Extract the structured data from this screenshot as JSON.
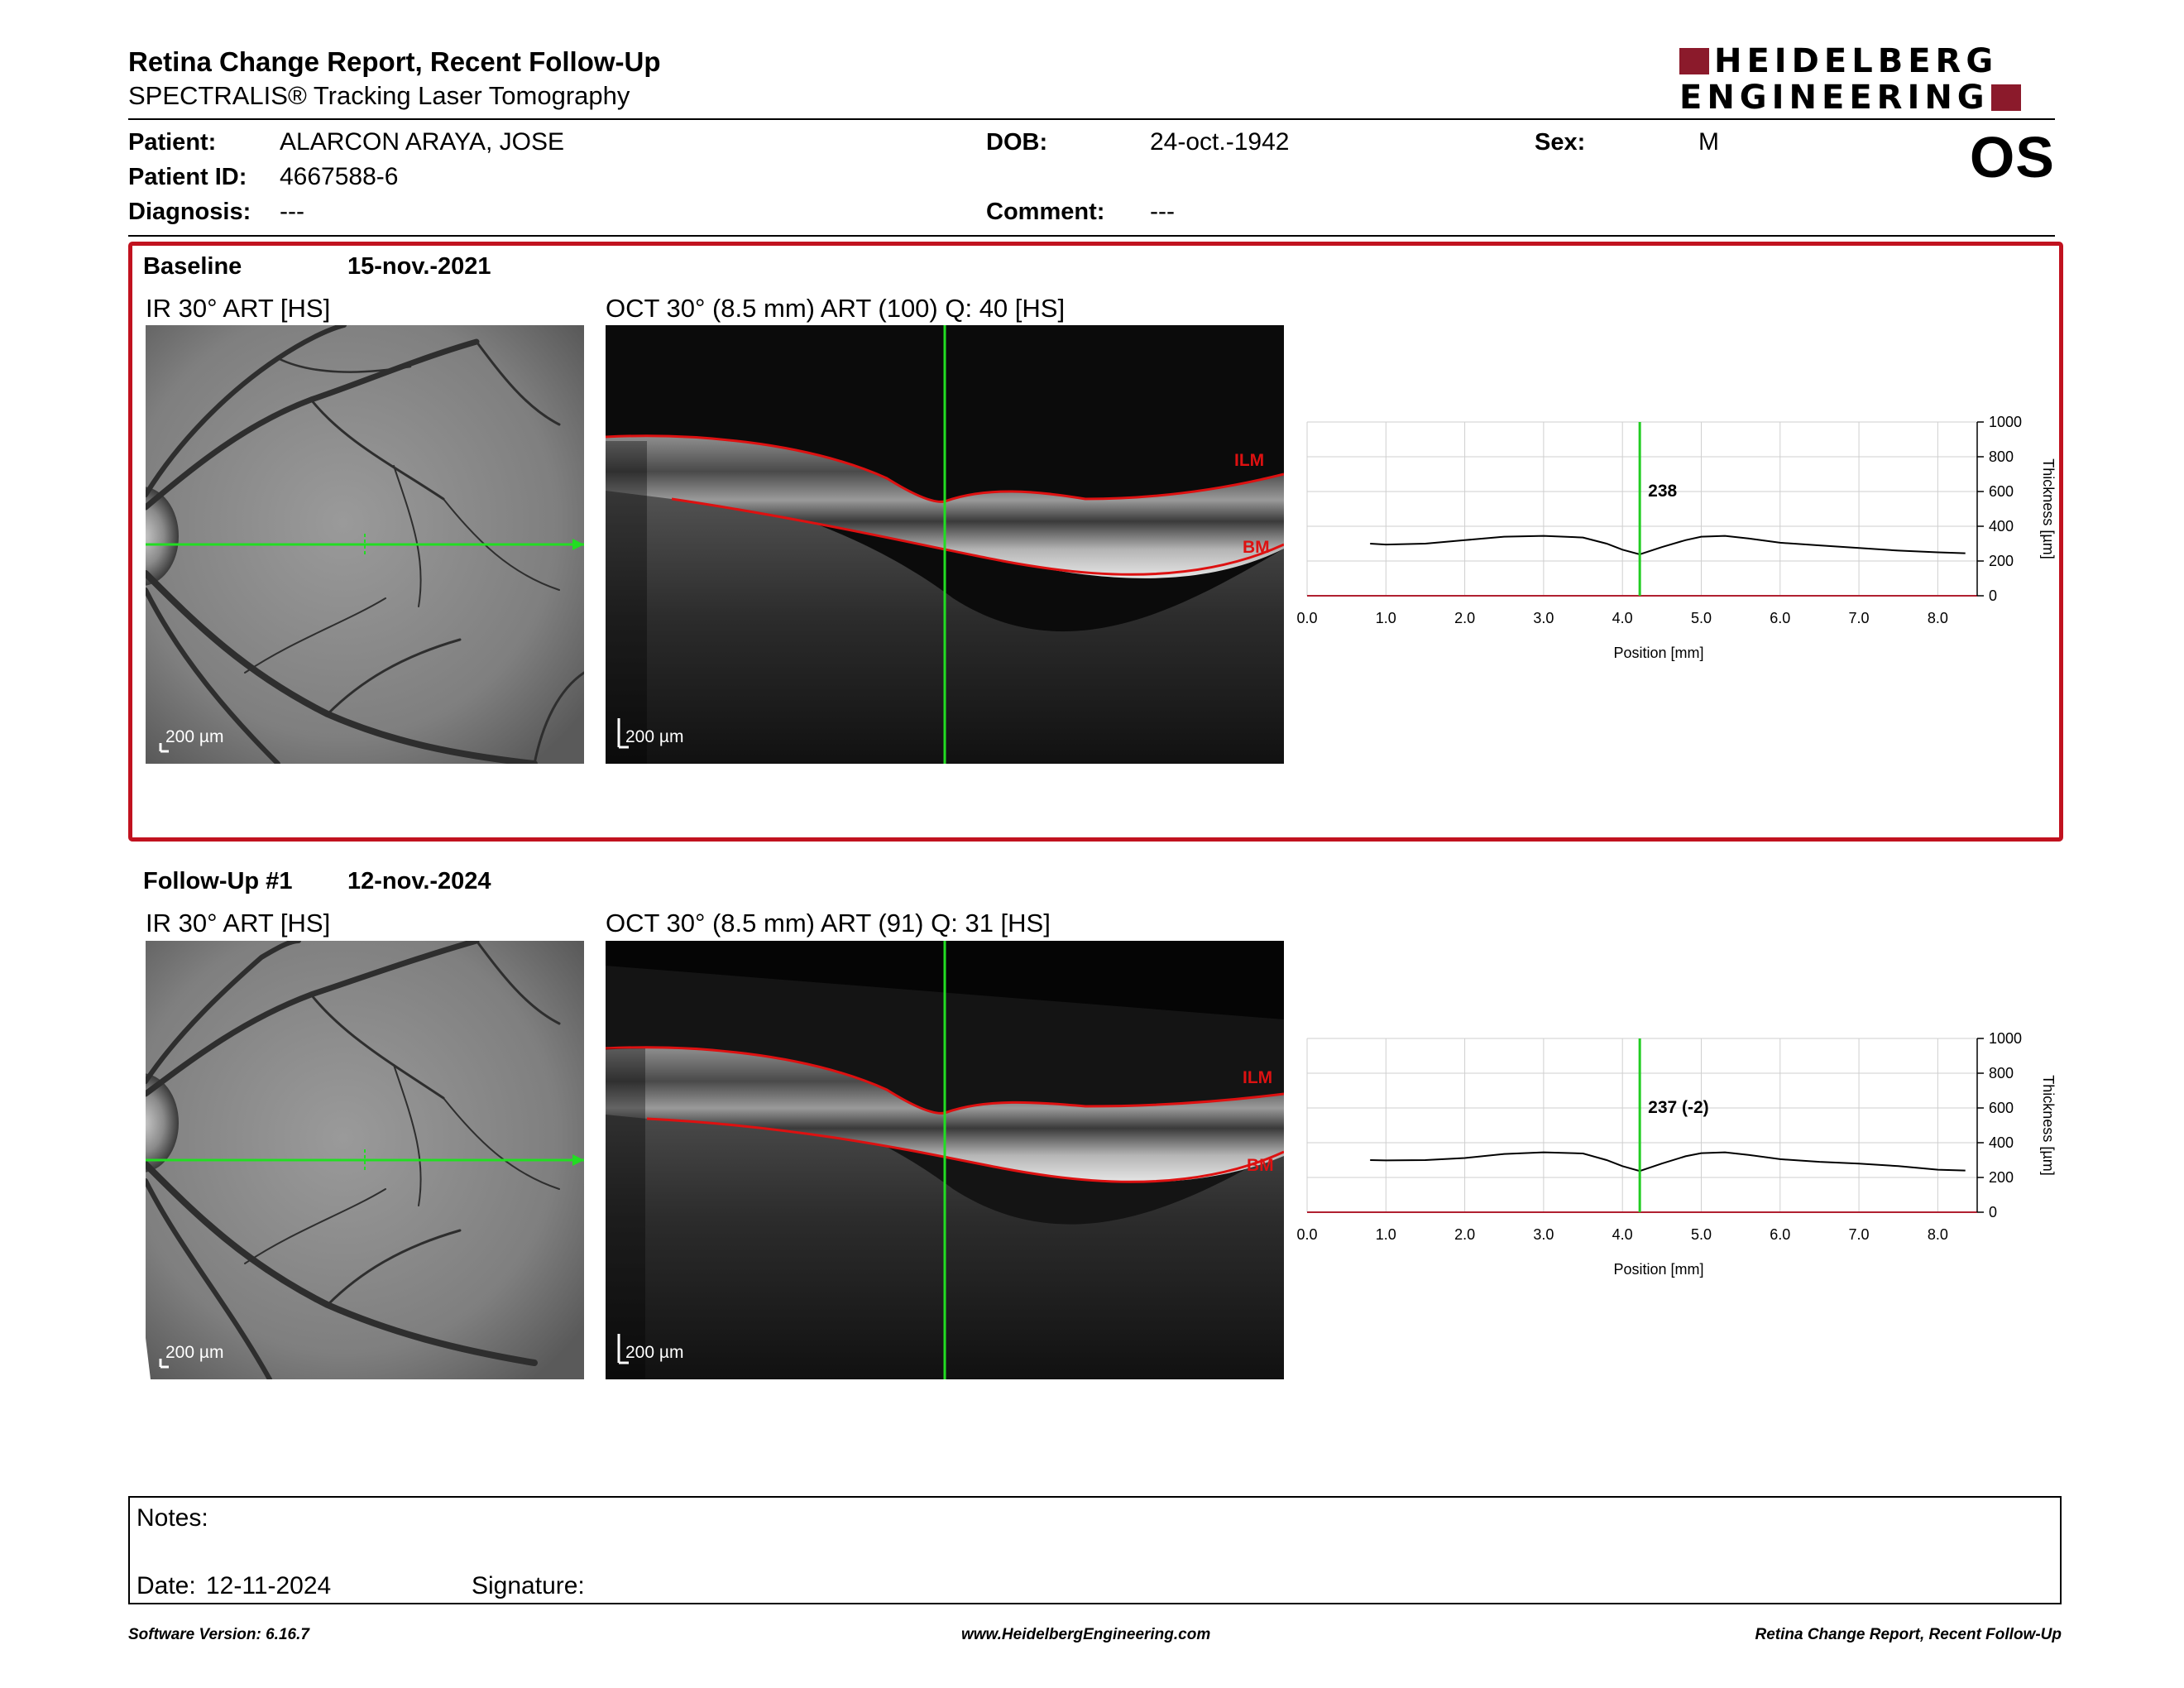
{
  "header": {
    "title": "Retina Change Report, Recent Follow-Up",
    "subtitle": "SPECTRALIS® Tracking Laser Tomography",
    "logo_line1": "HEIDELBERG",
    "logo_line2": "ENGINEERING",
    "logo_color": "#8b1a2b",
    "eye": "OS"
  },
  "patient": {
    "name_label": "Patient:",
    "name": "ALARCON ARAYA, JOSE",
    "dob_label": "DOB:",
    "dob": "24-oct.-1942",
    "sex_label": "Sex:",
    "sex": "M",
    "id_label": "Patient ID:",
    "id": "4667588-6",
    "diagnosis_label": "Diagnosis:",
    "diagnosis": "---",
    "comment_label": "Comment:",
    "comment": "---"
  },
  "baseline": {
    "label": "Baseline",
    "date": "15-nov.-2021",
    "ir_caption": "IR 30° ART [HS]",
    "oct_caption": "OCT 30° (8.5 mm) ART (100) Q: 40 [HS]",
    "scale": "200 µm",
    "ilm": "ILM",
    "bm": "BM",
    "box_color": "#c1121f"
  },
  "followup": {
    "label": "Follow-Up #1",
    "date": "12-nov.-2024",
    "ir_caption": "IR 30° ART [HS]",
    "oct_caption": "OCT 30° (8.5 mm) ART (91) Q: 31 [HS]",
    "scale": "200 µm",
    "ilm": "ILM",
    "bm": "BM"
  },
  "chart_data": [
    {
      "type": "line",
      "xlabel": "Position [mm]",
      "ylabel": "Thickness [µm]",
      "xlim": [
        0,
        8.5
      ],
      "ylim": [
        0,
        1000
      ],
      "xticks": [
        "0.0",
        "1.0",
        "2.0",
        "3.0",
        "4.0",
        "5.0",
        "6.0",
        "7.0",
        "8.0"
      ],
      "yticks": [
        "0",
        "200",
        "400",
        "600",
        "800",
        "1000"
      ],
      "cursor_x": 4.22,
      "cursor_label": "238",
      "cursor_color": "#22cc22",
      "grid": true,
      "x": [
        0.8,
        1.0,
        1.5,
        2.0,
        2.5,
        3.0,
        3.5,
        3.8,
        4.0,
        4.22,
        4.5,
        4.8,
        5.0,
        5.3,
        5.6,
        6.0,
        6.5,
        7.0,
        7.5,
        8.0,
        8.35
      ],
      "y": [
        300,
        295,
        300,
        320,
        340,
        345,
        335,
        300,
        265,
        238,
        280,
        320,
        340,
        345,
        330,
        305,
        290,
        275,
        260,
        250,
        245
      ]
    },
    {
      "type": "line",
      "xlabel": "Position [mm]",
      "ylabel": "Thickness [µm]",
      "xlim": [
        0,
        8.5
      ],
      "ylim": [
        0,
        1000
      ],
      "xticks": [
        "0.0",
        "1.0",
        "2.0",
        "3.0",
        "4.0",
        "5.0",
        "6.0",
        "7.0",
        "8.0"
      ],
      "yticks": [
        "0",
        "200",
        "400",
        "600",
        "800",
        "1000"
      ],
      "cursor_x": 4.22,
      "cursor_label": "237 (-2)",
      "cursor_color": "#22cc22",
      "grid": true,
      "x": [
        0.8,
        1.0,
        1.5,
        2.0,
        2.5,
        3.0,
        3.5,
        3.8,
        4.0,
        4.22,
        4.5,
        4.8,
        5.0,
        5.3,
        5.6,
        6.0,
        6.5,
        7.0,
        7.5,
        8.0,
        8.35
      ],
      "y": [
        300,
        298,
        300,
        312,
        335,
        345,
        338,
        300,
        265,
        237,
        280,
        322,
        340,
        345,
        330,
        305,
        290,
        280,
        265,
        245,
        240
      ]
    }
  ],
  "notes": {
    "label": "Notes:",
    "date_label": "Date:",
    "date": "12-11-2024",
    "signature_label": "Signature:"
  },
  "footer": {
    "left": "Software Version: 6.16.7",
    "center": "www.HeidelbergEngineering.com",
    "right": "Retina Change Report, Recent Follow-Up"
  }
}
